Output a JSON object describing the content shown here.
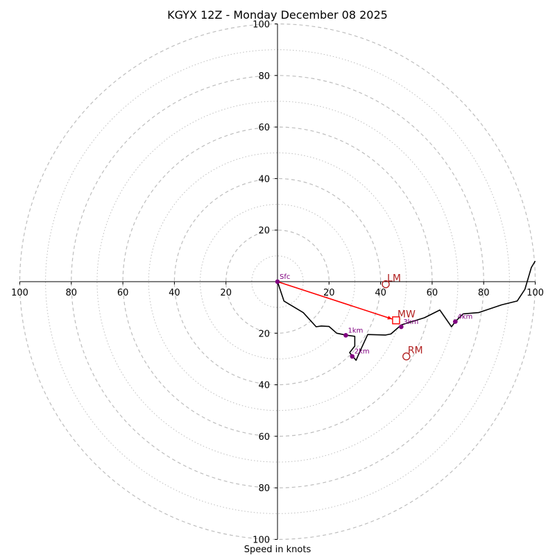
{
  "chart_data": {
    "type": "hodograph",
    "title": "KGYX 12Z - Monday December 08 2025",
    "xlabel": "Speed in knots",
    "rings": [
      10,
      20,
      30,
      40,
      50,
      60,
      70,
      80,
      90,
      100
    ],
    "tick_labels": [
      "20",
      "40",
      "60",
      "80",
      "100"
    ],
    "xlim": [
      -100,
      100
    ],
    "ylim": [
      -100,
      100
    ],
    "colors": {
      "grid": "#bdbdbd",
      "hodograph": "#000000",
      "height_markers": "#800080",
      "shear_vector": "#ff0000",
      "motion_labels": "#b22222"
    },
    "hodograph": [
      [
        0,
        0
      ],
      [
        2.5,
        -7.5
      ],
      [
        10,
        -12
      ],
      [
        15,
        -17.5
      ],
      [
        17,
        -17.2
      ],
      [
        20,
        -17.4
      ],
      [
        23,
        -20
      ],
      [
        27,
        -20.8
      ],
      [
        30,
        -21.2
      ],
      [
        30,
        -25
      ],
      [
        28,
        -27.5
      ],
      [
        29,
        -28.8
      ],
      [
        30.5,
        -30.5
      ],
      [
        32,
        -27
      ],
      [
        35,
        -20.5
      ],
      [
        42,
        -20.7
      ],
      [
        44,
        -20.3
      ],
      [
        48,
        -16.8
      ],
      [
        57,
        -14
      ],
      [
        63,
        -11
      ],
      [
        67.5,
        -17.5
      ],
      [
        69,
        -15.5
      ],
      [
        72,
        -12.5
      ],
      [
        78,
        -12
      ],
      [
        87,
        -9
      ],
      [
        93,
        -7.5
      ],
      [
        96,
        -3
      ],
      [
        98.5,
        5.5
      ],
      [
        100,
        8
      ]
    ],
    "height_markers": [
      {
        "label": "Sfc",
        "u": 0,
        "v": 0
      },
      {
        "label": "1km",
        "u": 26.5,
        "v": -20.8
      },
      {
        "label": "2km",
        "u": 29,
        "v": -29
      },
      {
        "label": "3km",
        "u": 48,
        "v": -17.5
      },
      {
        "label": "4km",
        "u": 69,
        "v": -15.5
      }
    ],
    "storm_motions": [
      {
        "label": "LM",
        "u": 42,
        "v": -1,
        "marker": "circle"
      },
      {
        "label": "MW",
        "u": 46,
        "v": -15,
        "marker": "square"
      },
      {
        "label": "RM",
        "u": 50,
        "v": -29,
        "marker": "circle"
      }
    ],
    "shear_vector": {
      "from": [
        0,
        0
      ],
      "to": [
        44.5,
        -14.5
      ]
    }
  }
}
